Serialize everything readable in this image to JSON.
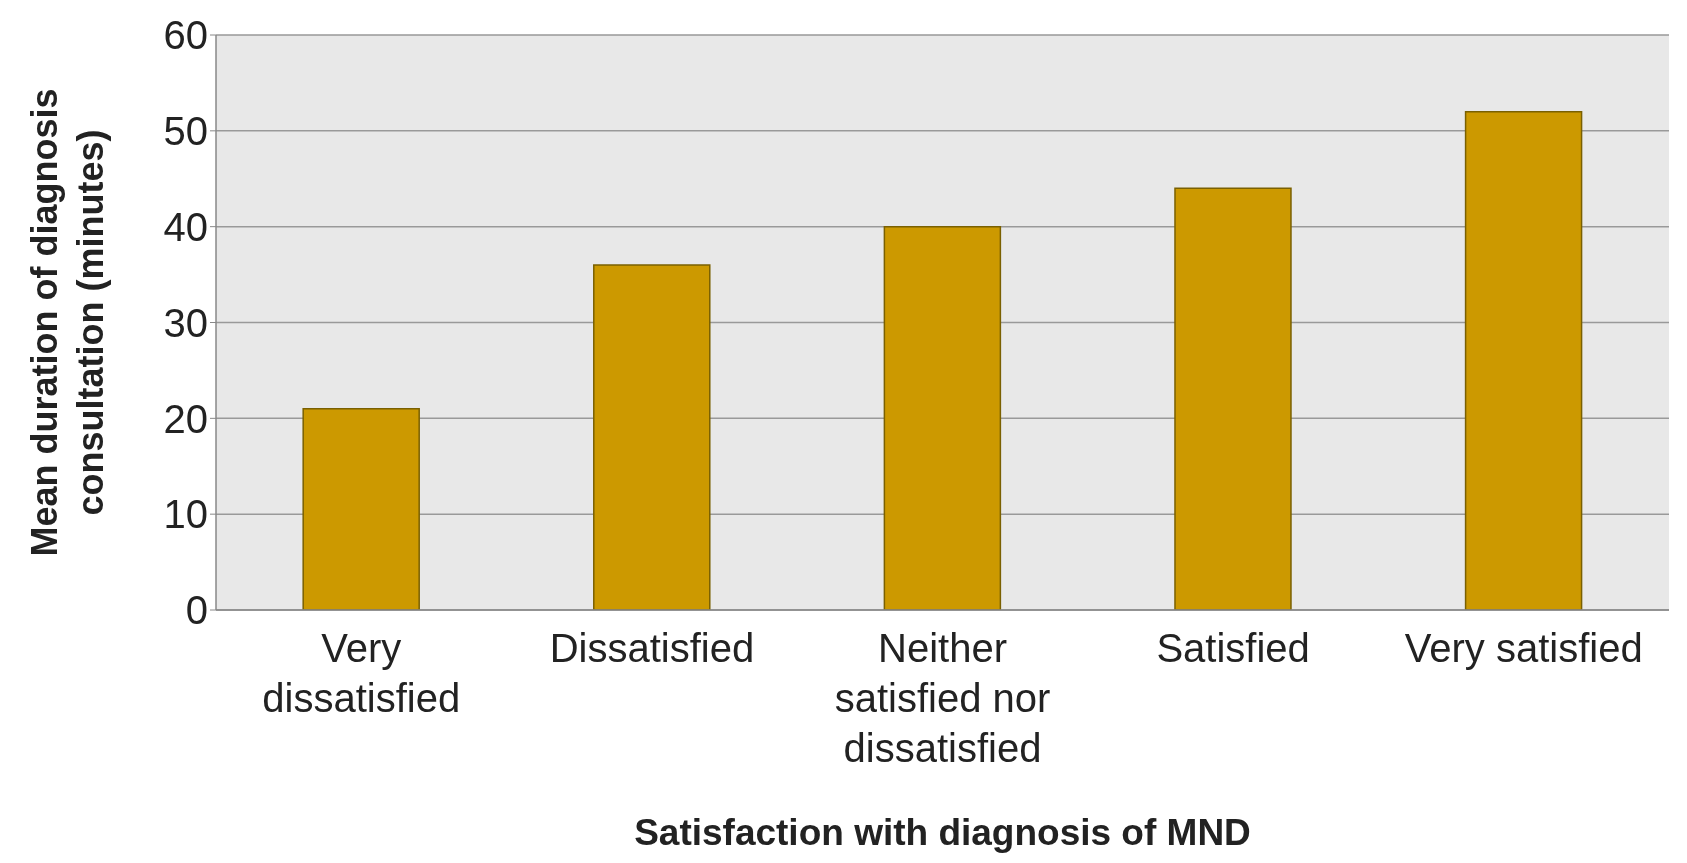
{
  "chart_data": {
    "type": "bar",
    "xlabel": "Satisfaction with diagnosis of MND",
    "ylabel": "Mean duration of diagnosis consultation (minutes)",
    "categories": [
      "Very dissatisfied",
      "Dissatisfied",
      "Neither satisfied nor dissatisfied",
      "Satisfied",
      "Very satisfied"
    ],
    "values": [
      21,
      36,
      40,
      44,
      52
    ],
    "color": "#cc9900",
    "ylim": [
      0,
      60
    ],
    "yticks": [
      0,
      10,
      20,
      30,
      40,
      50,
      60
    ],
    "grid": "y"
  }
}
